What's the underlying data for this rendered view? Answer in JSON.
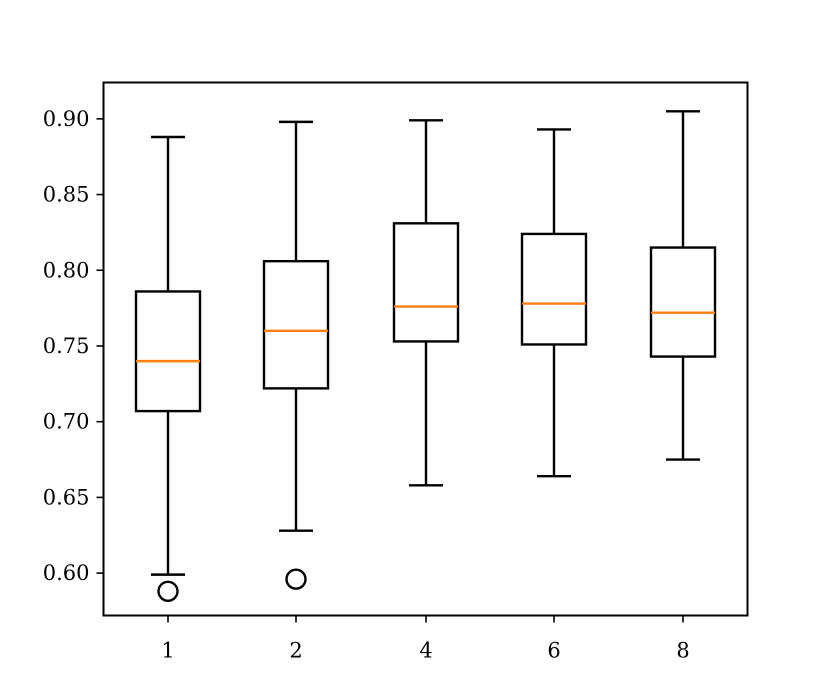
{
  "chart_data": {
    "type": "box",
    "title": "",
    "xlabel": "",
    "ylabel": "",
    "categories": [
      "1",
      "2",
      "4",
      "6",
      "8"
    ],
    "ylim": [
      0.572,
      0.924
    ],
    "yticks": [
      0.6,
      0.65,
      0.7,
      0.75,
      0.8,
      0.85,
      0.9
    ],
    "ytick_labels": [
      "0.60",
      "0.65",
      "0.70",
      "0.75",
      "0.80",
      "0.85",
      "0.90"
    ],
    "grid": false,
    "boxes": [
      {
        "category": "1",
        "whisker_low": 0.599,
        "q1": 0.707,
        "median": 0.74,
        "q3": 0.786,
        "whisker_high": 0.888,
        "outliers": [
          0.588
        ]
      },
      {
        "category": "2",
        "whisker_low": 0.628,
        "q1": 0.722,
        "median": 0.76,
        "q3": 0.806,
        "whisker_high": 0.898,
        "outliers": [
          0.596
        ]
      },
      {
        "category": "4",
        "whisker_low": 0.658,
        "q1": 0.753,
        "median": 0.776,
        "q3": 0.831,
        "whisker_high": 0.899,
        "outliers": []
      },
      {
        "category": "6",
        "whisker_low": 0.664,
        "q1": 0.751,
        "median": 0.778,
        "q3": 0.824,
        "whisker_high": 0.893,
        "outliers": []
      },
      {
        "category": "8",
        "whisker_low": 0.675,
        "q1": 0.743,
        "median": 0.772,
        "q3": 0.815,
        "whisker_high": 0.905,
        "outliers": []
      }
    ],
    "colors": {
      "box": "#000000",
      "median": "#ff7f0e",
      "axes": "#000000"
    }
  }
}
